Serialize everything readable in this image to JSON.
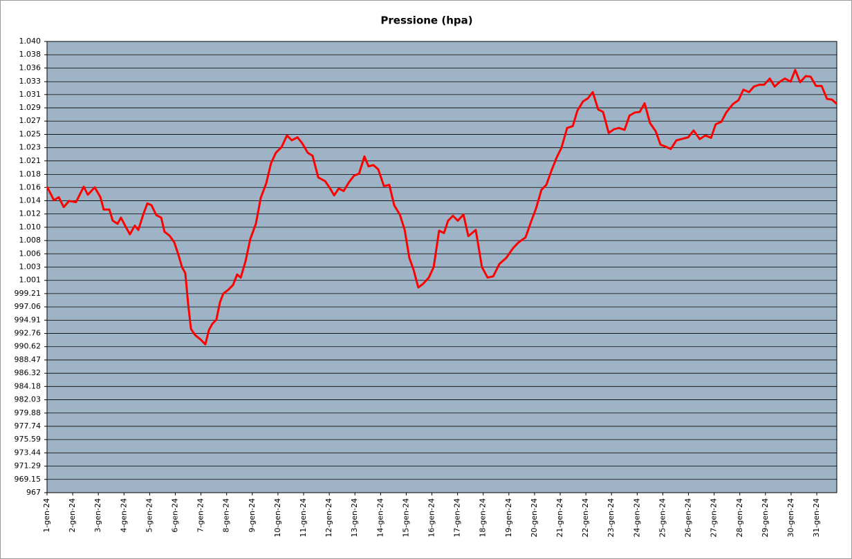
{
  "chart_data": {
    "type": "line",
    "title": "Pressione (hpa)",
    "x": [
      0,
      0.27,
      0.46,
      0.65,
      0.86,
      1.13,
      1.43,
      1.59,
      1.86,
      2.08,
      2.21,
      2.43,
      2.56,
      2.75,
      2.88,
      3.07,
      3.23,
      3.42,
      3.56,
      3.75,
      3.91,
      4.07,
      4.26,
      4.45,
      4.58,
      4.77,
      4.96,
      5.12,
      5.26,
      5.39,
      5.5,
      5.61,
      5.77,
      5.98,
      6.17,
      6.31,
      6.44,
      6.6,
      6.74,
      6.87,
      7.06,
      7.25,
      7.41,
      7.55,
      7.74,
      7.92,
      8.14,
      8.33,
      8.54,
      8.73,
      8.92,
      9.14,
      9.35,
      9.54,
      9.76,
      9.95,
      10.16,
      10.35,
      10.57,
      10.84,
      11.02,
      11.19,
      11.37,
      11.56,
      11.78,
      11.97,
      12.16,
      12.37,
      12.53,
      12.72,
      12.91,
      13.13,
      13.34,
      13.53,
      13.75,
      13.94,
      14.12,
      14.29,
      14.47,
      14.66,
      14.88,
      15.07,
      15.28,
      15.47,
      15.63,
      15.82,
      16.01,
      16.23,
      16.42,
      16.71,
      16.95,
      17.17,
      17.39,
      17.63,
      17.9,
      18.17,
      18.38,
      18.65,
      18.87,
      19.06,
      19.27,
      19.46,
      19.65,
      19.87,
      20.05,
      20.27,
      20.49,
      20.67,
      20.89,
      21.08,
      21.27,
      21.48,
      21.67,
      21.89,
      22.1,
      22.29,
      22.51,
      22.7,
      22.91,
      23.1,
      23.29,
      23.5,
      23.72,
      23.91,
      24.1,
      24.31,
      24.53,
      24.72,
      24.99,
      25.2,
      25.44,
      25.66,
      25.88,
      26.06,
      26.28,
      26.47,
      26.74,
      26.95,
      27.14,
      27.36,
      27.55,
      27.76,
      27.95,
      28.17,
      28.36,
      28.57,
      28.76,
      28.98,
      29.16,
      29.35,
      29.57,
      29.76,
      29.97,
      30.19,
      30.4,
      30.59,
      30.78
    ],
    "series": [
      {
        "name": "Pressione",
        "color": "#ff0000",
        "values": [
          1016.5,
          1014.3,
          1014.8,
          1013.2,
          1014.2,
          1014.0,
          1016.5,
          1015.2,
          1016.4,
          1014.8,
          1012.8,
          1012.8,
          1011.0,
          1010.5,
          1011.5,
          1010.0,
          1008.8,
          1010.2,
          1009.5,
          1012.0,
          1013.8,
          1013.5,
          1011.9,
          1011.5,
          1009.2,
          1008.6,
          1007.5,
          1005.5,
          1003.5,
          1002.5,
          997.5,
          993.5,
          992.5,
          991.8,
          991.0,
          993.3,
          994.3,
          995.0,
          997.8,
          999.2,
          999.8,
          1000.6,
          1002.3,
          1001.8,
          1004.5,
          1008.0,
          1010.5,
          1014.7,
          1017.0,
          1020.3,
          1022.0,
          1022.9,
          1024.8,
          1024.0,
          1024.5,
          1023.5,
          1022.0,
          1021.5,
          1018.0,
          1017.4,
          1016.3,
          1015.1,
          1016.2,
          1015.8,
          1017.3,
          1018.3,
          1018.6,
          1021.4,
          1019.8,
          1020.0,
          1019.3,
          1016.6,
          1016.8,
          1013.5,
          1012.0,
          1009.5,
          1005.0,
          1003.0,
          1000.2,
          1000.8,
          1001.8,
          1003.5,
          1009.4,
          1009.0,
          1011.0,
          1011.8,
          1011.0,
          1012.0,
          1008.5,
          1009.5,
          1003.5,
          1001.8,
          1002.0,
          1004.0,
          1005.0,
          1006.6,
          1007.5,
          1008.3,
          1010.9,
          1013.0,
          1016.0,
          1016.8,
          1019.0,
          1021.3,
          1022.8,
          1026.0,
          1026.3,
          1028.8,
          1030.3,
          1030.8,
          1031.8,
          1029.0,
          1028.6,
          1025.2,
          1025.8,
          1026.0,
          1025.7,
          1028.0,
          1028.5,
          1028.6,
          1030.0,
          1026.8,
          1025.5,
          1023.3,
          1023.0,
          1022.6,
          1024.0,
          1024.2,
          1024.5,
          1025.6,
          1024.2,
          1024.8,
          1024.4,
          1026.6,
          1027.0,
          1028.5,
          1029.9,
          1030.5,
          1032.2,
          1031.8,
          1032.7,
          1033.0,
          1033.0,
          1034.0,
          1032.7,
          1033.5,
          1034.0,
          1033.5,
          1035.4,
          1033.4,
          1034.4,
          1034.3,
          1032.8,
          1032.8,
          1030.7,
          1030.6,
          1029.9
        ]
      }
    ],
    "xlim": [
      0,
      30.78
    ],
    "xticks": [
      {
        "value": 0,
        "label": "1-gen-24"
      },
      {
        "value": 1,
        "label": "2-gen-24"
      },
      {
        "value": 2,
        "label": "3-gen-24"
      },
      {
        "value": 3,
        "label": "4-gen-24"
      },
      {
        "value": 4,
        "label": "5-gen-24"
      },
      {
        "value": 5,
        "label": "6-gen-24"
      },
      {
        "value": 6,
        "label": "7-gen-24"
      },
      {
        "value": 7,
        "label": "8-gen-24"
      },
      {
        "value": 8,
        "label": "9-gen-24"
      },
      {
        "value": 9,
        "label": "10-gen-24"
      },
      {
        "value": 10,
        "label": "11-gen-24"
      },
      {
        "value": 11,
        "label": "12-gen-24"
      },
      {
        "value": 12,
        "label": "13-gen-24"
      },
      {
        "value": 13,
        "label": "14-gen-24"
      },
      {
        "value": 14,
        "label": "15-gen-24"
      },
      {
        "value": 15,
        "label": "16-gen-24"
      },
      {
        "value": 16,
        "label": "17-gen-24"
      },
      {
        "value": 17,
        "label": "18-gen-24"
      },
      {
        "value": 18,
        "label": "19-gen-24"
      },
      {
        "value": 19,
        "label": "20-gen-24"
      },
      {
        "value": 20,
        "label": "21-gen-24"
      },
      {
        "value": 21,
        "label": "22-gen-24"
      },
      {
        "value": 22,
        "label": "23-gen-24"
      },
      {
        "value": 23,
        "label": "24-gen-24"
      },
      {
        "value": 24,
        "label": "25-gen-24"
      },
      {
        "value": 25,
        "label": "26-gen-24"
      },
      {
        "value": 26,
        "label": "27-gen-24"
      },
      {
        "value": 27,
        "label": "28-gen-24"
      },
      {
        "value": 28,
        "label": "29-gen-24"
      },
      {
        "value": 29,
        "label": "30-gen-24"
      },
      {
        "value": 30,
        "label": "31-gen-24"
      }
    ],
    "ylim": [
      967,
      1040
    ],
    "yticks": [
      967,
      969.15,
      971.29,
      973.44,
      975.59,
      977.74,
      979.88,
      982.03,
      984.18,
      986.32,
      988.47,
      990.62,
      992.76,
      994.91,
      997.06,
      999.21,
      {
        "value": 1001.35,
        "label": "1.001"
      },
      {
        "value": 1003.49,
        "label": "1.003"
      },
      {
        "value": 1005.65,
        "label": "1.006"
      },
      {
        "value": 1007.79,
        "label": "1.008"
      },
      {
        "value": 1009.94,
        "label": "1.010"
      },
      {
        "value": 1012.09,
        "label": "1.012"
      },
      {
        "value": 1014.24,
        "label": "1.014"
      },
      {
        "value": 1016.38,
        "label": "1.016"
      },
      {
        "value": 1018.49,
        "label": "1.018"
      },
      {
        "value": 1020.68,
        "label": "1.021"
      },
      {
        "value": 1022.82,
        "label": "1.023"
      },
      {
        "value": 1024.97,
        "label": "1.025"
      },
      {
        "value": 1027.12,
        "label": "1.027"
      },
      {
        "value": 1029.26,
        "label": "1.029"
      },
      {
        "value": 1031.41,
        "label": "1.031"
      },
      {
        "value": 1033.49,
        "label": "1.033"
      },
      {
        "value": 1035.71,
        "label": "1.036"
      },
      {
        "value": 1037.85,
        "label": "1.038"
      },
      {
        "value": 1040,
        "label": "1.040"
      }
    ],
    "grid": true,
    "plot_background": "#9fb3c7"
  }
}
